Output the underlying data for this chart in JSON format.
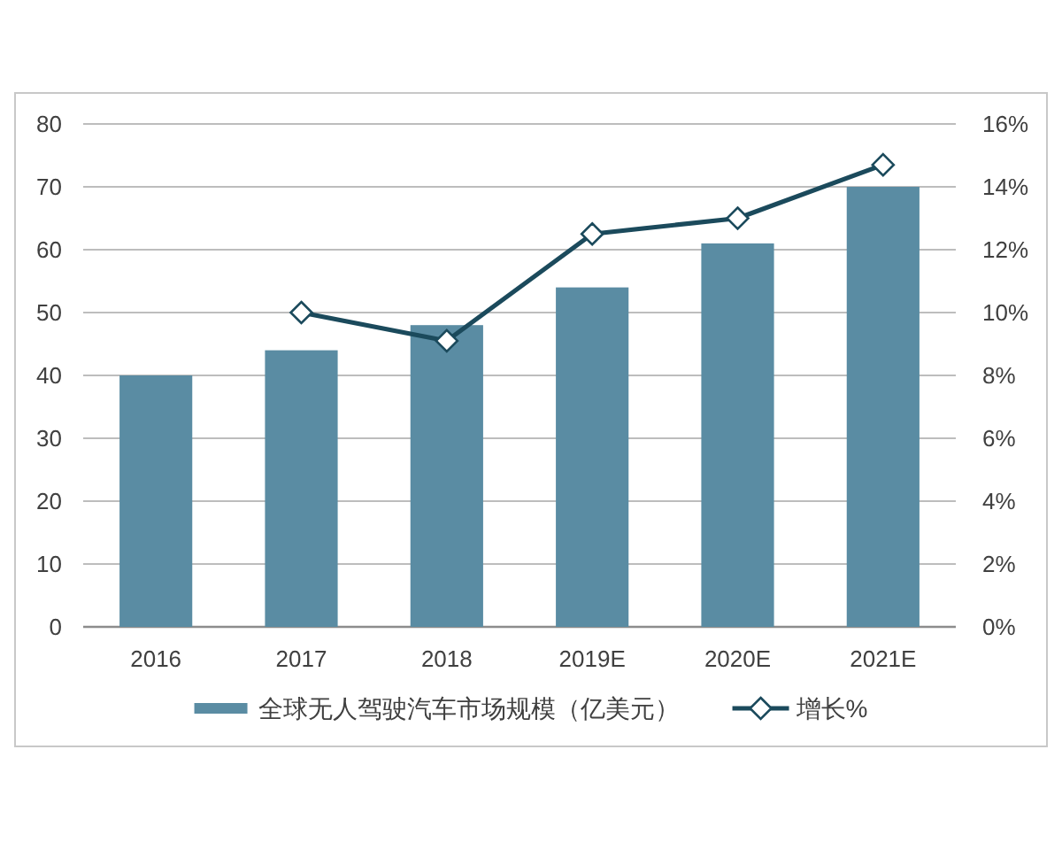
{
  "chart_data": {
    "type": "bar",
    "categories": [
      "2016",
      "2017",
      "2018",
      "2019E",
      "2020E",
      "2021E"
    ],
    "series": [
      {
        "name": "全球无人驾驶汽车市场规模（亿美元）",
        "color": "#5a8ca3",
        "values": [
          40,
          44,
          48,
          54,
          61,
          70
        ]
      },
      {
        "name": "增长%",
        "type": "line",
        "axis": "y2",
        "color": "#1b4a5c",
        "marker": "diamond",
        "line_style": "solid",
        "values": [
          null,
          10,
          9.1,
          12.5,
          13,
          14.7
        ]
      }
    ],
    "ylim": [
      0,
      80
    ],
    "yticks": [
      0,
      10,
      20,
      30,
      40,
      50,
      60,
      70,
      80
    ],
    "y2lim": [
      0,
      16
    ],
    "y2ticks": [
      {
        "value": 0,
        "label": "0%"
      },
      {
        "value": 2,
        "label": "2%"
      },
      {
        "value": 4,
        "label": "4%"
      },
      {
        "value": 6,
        "label": "6%"
      },
      {
        "value": 8,
        "label": "8%"
      },
      {
        "value": 10,
        "label": "10%"
      },
      {
        "value": 12,
        "label": "12%"
      },
      {
        "value": 14,
        "label": "14%"
      },
      {
        "value": 16,
        "label": "16%"
      }
    ],
    "grid": "y",
    "legend": "bottom"
  }
}
